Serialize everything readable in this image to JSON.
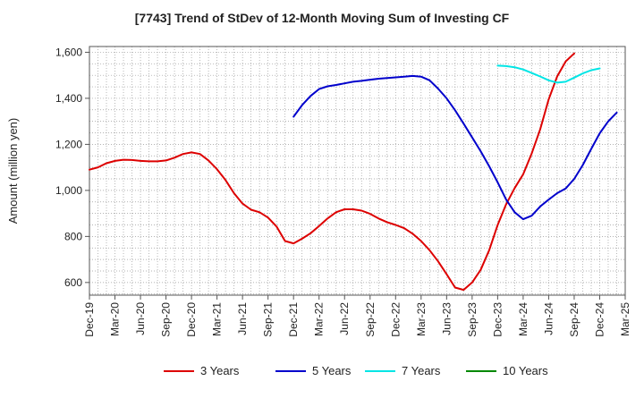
{
  "chart_data": {
    "type": "line",
    "title": "[7743]  Trend of StDev of 12-Month Moving Sum of Investing CF",
    "ylabel": "Amount (million yen)",
    "xlabel": "",
    "ylim": [
      545,
      1625
    ],
    "y_ticks": [
      600,
      800,
      1000,
      1200,
      1400,
      1600
    ],
    "y_tick_labels": [
      "600",
      "800",
      "1,000",
      "1,200",
      "1,400",
      "1,600"
    ],
    "x_tick_labels": [
      "Dec-19",
      "Mar-20",
      "Jun-20",
      "Sep-20",
      "Dec-20",
      "Mar-21",
      "Jun-21",
      "Sep-21",
      "Dec-21",
      "Mar-22",
      "Jun-22",
      "Sep-22",
      "Dec-22",
      "Mar-23",
      "Jun-23",
      "Sep-23",
      "Dec-23",
      "Mar-24",
      "Jun-24",
      "Sep-24",
      "Dec-24",
      "Mar-25"
    ],
    "grid": true,
    "legend_position": "bottom",
    "series": [
      {
        "name": "3 Years",
        "color": "#dd0000",
        "start_index": 0,
        "values": [
          1090,
          1100,
          1118,
          1128,
          1133,
          1132,
          1128,
          1126,
          1126,
          1130,
          1142,
          1158,
          1165,
          1158,
          1130,
          1092,
          1045,
          988,
          943,
          916,
          905,
          882,
          843,
          780,
          770,
          790,
          814,
          845,
          878,
          905,
          918,
          918,
          912,
          898,
          878,
          862,
          850,
          836,
          812,
          780,
          740,
          692,
          636,
          578,
          568,
          600,
          655,
          740,
          850,
          940,
          1010,
          1070,
          1160,
          1265,
          1395,
          1495,
          1560,
          1595
        ]
      },
      {
        "name": "5 Years",
        "color": "#0000cc",
        "start_index": 24,
        "values": [
          1320,
          1370,
          1410,
          1440,
          1452,
          1458,
          1465,
          1472,
          1476,
          1481,
          1485,
          1488,
          1491,
          1494,
          1497,
          1494,
          1478,
          1442,
          1400,
          1348,
          1290,
          1230,
          1170,
          1105,
          1035,
          960,
          905,
          875,
          890,
          930,
          960,
          988,
          1008,
          1050,
          1110,
          1180,
          1248,
          1300,
          1338
        ]
      },
      {
        "name": "7 Years",
        "color": "#00e5e5",
        "start_index": 48,
        "values": [
          1542,
          1540,
          1535,
          1525,
          1510,
          1495,
          1478,
          1468,
          1472,
          1490,
          1508,
          1522,
          1530
        ]
      },
      {
        "name": "10 Years",
        "color": "#008800",
        "start_index": 0,
        "values": []
      }
    ]
  }
}
